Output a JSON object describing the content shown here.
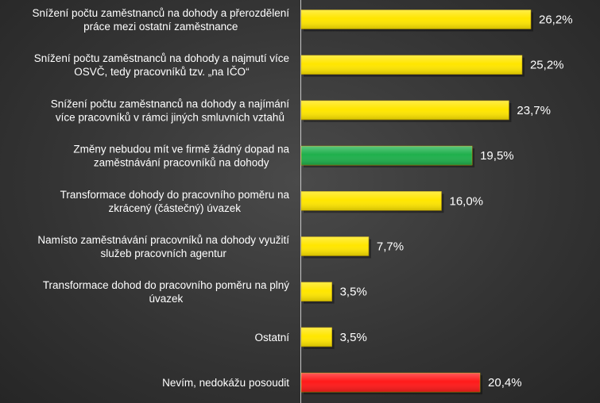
{
  "chart_data": {
    "type": "bar",
    "orientation": "horizontal",
    "categories": [
      [
        "Snížení počtu zaměstnanců na dohody a přerozdělení",
        "práce mezi ostatní zaměstnance"
      ],
      [
        "Snížení počtu zaměstnanců na dohody a najmutí více",
        "OSVČ, tedy pracovníků tzv. „na IČO“"
      ],
      [
        "Snížení počtu zaměstnanců na dohody a najímání",
        "více pracovníků v rámci jiných smluvních vztahů"
      ],
      [
        "Změny nebudou mít ve firmě žádný dopad na",
        "zaměstnávání pracovníků na dohody"
      ],
      [
        "Transformace dohody do pracovního poměru na",
        "zkrácený (částečný) úvazek"
      ],
      [
        "Namísto zaměstnávání pracovníků na dohody využití",
        "služeb pracovních agentur"
      ],
      [
        "Transformace dohod do pracovního poměru na plný",
        "úvazek"
      ],
      [
        "Ostatní"
      ],
      [
        "Nevím, nedokážu posoudit"
      ]
    ],
    "values": [
      26.2,
      25.2,
      23.7,
      19.5,
      16.0,
      7.7,
      3.5,
      3.5,
      20.4
    ],
    "value_labels": [
      "26,2%",
      "25,2%",
      "23,7%",
      "19,5%",
      "16,0%",
      "7,7%",
      "3,5%",
      "3,5%",
      "20,4%"
    ],
    "bar_colors": [
      "#ffe600",
      "#ffe600",
      "#ffe600",
      "#1fb04c",
      "#ffe600",
      "#ffe600",
      "#ffe600",
      "#ffe600",
      "#ff1a1a"
    ],
    "xlim": [
      0,
      30
    ],
    "grid": false,
    "legend": "none",
    "title": "",
    "xlabel": "",
    "ylabel": ""
  }
}
